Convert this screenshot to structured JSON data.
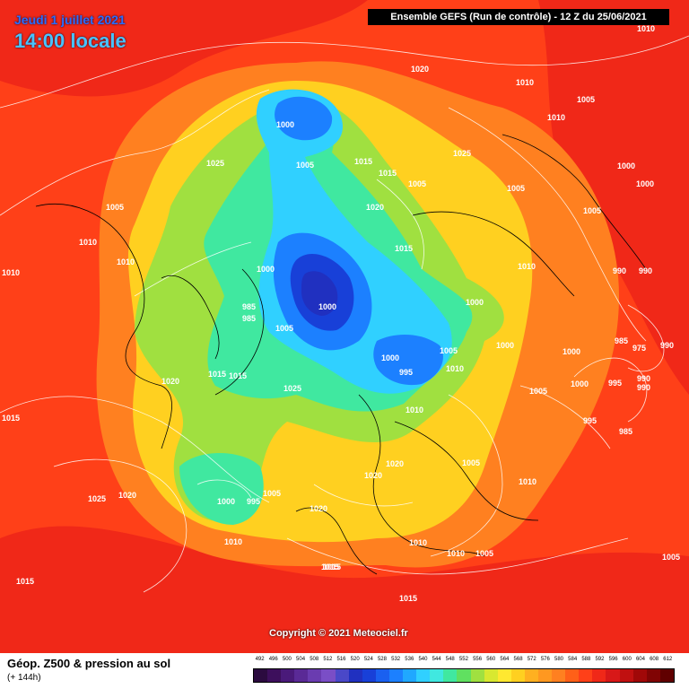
{
  "header": {
    "date": "Jeudi 1 juillet 2021",
    "time": "14:00 locale",
    "model": "Ensemble GEFS  (Run de contrôle)  -  12 Z du 25/06/2021"
  },
  "copyright": "Copyright © 2021 Meteociel.fr",
  "footer": {
    "title": "Géop. Z500 & pression au sol",
    "subtitle": "(+ 144h)"
  },
  "legend": {
    "labels": [
      "492",
      "496",
      "500",
      "504",
      "508",
      "512",
      "516",
      "520",
      "524",
      "528",
      "532",
      "536",
      "540",
      "544",
      "548",
      "552",
      "556",
      "560",
      "564",
      "568",
      "572",
      "576",
      "580",
      "584",
      "588",
      "592",
      "596",
      "600",
      "604",
      "608",
      "612"
    ],
    "colors": [
      "#2b0b3f",
      "#3d0f5c",
      "#4a1a7a",
      "#5a2a96",
      "#6a3cb0",
      "#7a4ec6",
      "#4a48c8",
      "#2030c0",
      "#1840d8",
      "#1a60f0",
      "#1c80ff",
      "#20a8ff",
      "#30d0ff",
      "#40e8e0",
      "#40e8a0",
      "#60e060",
      "#a0e040",
      "#d8e830",
      "#ffe830",
      "#ffd020",
      "#ffb020",
      "#ff9820",
      "#ff8020",
      "#ff6018",
      "#ff4018",
      "#f02818",
      "#d81818",
      "#c01010",
      "#a00808",
      "#800404",
      "#600000"
    ]
  },
  "map": {
    "palette": {
      "outer": "#ff4018",
      "red": "#f02818",
      "orange": "#ff8020",
      "orange2": "#ff9820",
      "yellow": "#ffd020",
      "yellow2": "#ffe830",
      "lime": "#a0e040",
      "green": "#40e8a0",
      "cyan": "#30d0ff",
      "blue": "#1c80ff",
      "deep": "#1840d8",
      "darkest": "#2030c0"
    },
    "pressure_labels": [
      "1000",
      "1005",
      "1010",
      "1015",
      "1020",
      "1025",
      "995",
      "990",
      "985",
      "975",
      "1020",
      "1010",
      "1005",
      "1000",
      "995",
      "990",
      "1015",
      "1025",
      "1000",
      "1005",
      "1010",
      "1015",
      "1020",
      "985",
      "1000",
      "995",
      "1010",
      "1005",
      "1000",
      "985",
      "990",
      "1005",
      "1010",
      "1015",
      "1020",
      "1025",
      "1000",
      "995",
      "1010",
      "1015",
      "1005",
      "1000",
      "1010",
      "1015",
      "1005",
      "1010",
      "1015",
      "1020",
      "1025",
      "1020",
      "1010",
      "1005",
      "1000",
      "1010",
      "1005",
      "1015",
      "1000",
      "1005",
      "985",
      "990",
      "990",
      "1010",
      "1010",
      "1015",
      "1005",
      "1000",
      "1005",
      "1000",
      "1010",
      "1015",
      "1020",
      "1005"
    ]
  }
}
